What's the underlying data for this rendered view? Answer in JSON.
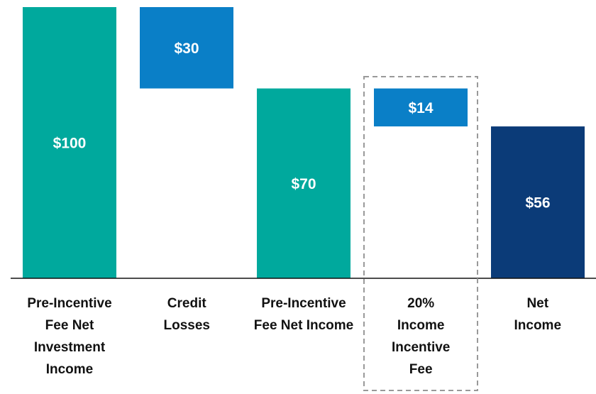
{
  "chart_data": {
    "type": "waterfall",
    "categories": [
      "Pre-Incentive Fee Net Investment Income",
      "Credit Losses",
      "Pre-Incentive Fee Net Income",
      "20% Income Incentive Fee",
      "Net Income"
    ],
    "values": [
      100,
      30,
      70,
      14,
      56
    ],
    "value_labels": [
      "$100",
      "$30",
      "$70",
      "$14",
      "$56"
    ],
    "measures": [
      "total",
      "decrease",
      "total",
      "decrease",
      "total"
    ],
    "colors": [
      "#00a99d",
      "#0a7fc7",
      "#00a99d",
      "#0a7fc7",
      "#0b3b78"
    ],
    "ylim": [
      0,
      100
    ],
    "highlight": 3
  }
}
